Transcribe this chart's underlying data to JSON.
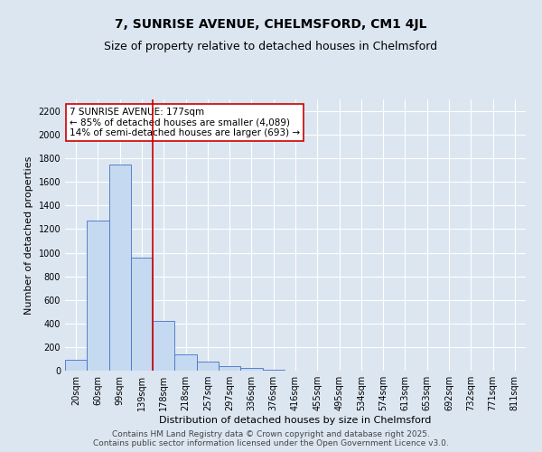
{
  "title1": "7, SUNRISE AVENUE, CHELMSFORD, CM1 4JL",
  "title2": "Size of property relative to detached houses in Chelmsford",
  "xlabel": "Distribution of detached houses by size in Chelmsford",
  "ylabel": "Number of detached properties",
  "categories": [
    "20sqm",
    "60sqm",
    "99sqm",
    "139sqm",
    "178sqm",
    "218sqm",
    "257sqm",
    "297sqm",
    "336sqm",
    "376sqm",
    "416sqm",
    "455sqm",
    "495sqm",
    "534sqm",
    "574sqm",
    "613sqm",
    "653sqm",
    "692sqm",
    "732sqm",
    "771sqm",
    "811sqm"
  ],
  "values": [
    90,
    1270,
    1750,
    960,
    420,
    140,
    80,
    40,
    20,
    5,
    2,
    0,
    0,
    0,
    0,
    0,
    0,
    0,
    0,
    0,
    0
  ],
  "bar_color": "#c5d9f1",
  "bar_edge_color": "#4472c4",
  "annotation_text": "7 SUNRISE AVENUE: 177sqm\n← 85% of detached houses are smaller (4,089)\n14% of semi-detached houses are larger (693) →",
  "annotation_box_color": "#ffffff",
  "annotation_border_color": "#cc0000",
  "vline_color": "#cc0000",
  "vline_x_index": 3.5,
  "ylim": [
    0,
    2300
  ],
  "yticks": [
    0,
    200,
    400,
    600,
    800,
    1000,
    1200,
    1400,
    1600,
    1800,
    2000,
    2200
  ],
  "bg_color": "#dce6f1",
  "plot_bg_color": "#dce6f1",
  "footer_text": "Contains HM Land Registry data © Crown copyright and database right 2025.\nContains public sector information licensed under the Open Government Licence v3.0.",
  "title1_fontsize": 10,
  "title2_fontsize": 9,
  "xlabel_fontsize": 8,
  "ylabel_fontsize": 8,
  "annotation_fontsize": 7.5,
  "footer_fontsize": 6.5,
  "tick_fontsize": 7
}
